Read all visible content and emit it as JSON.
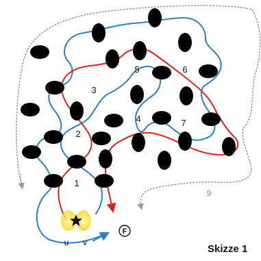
{
  "colors": {
    "blue_path": "#2a7fc6",
    "red_path": "#e02020",
    "dotted_outline": "#9a9a9a",
    "blob": "#000000",
    "glow": "#f4e04a"
  },
  "regions": [
    {
      "id": "1",
      "label": "1"
    },
    {
      "id": "2",
      "label": "2"
    },
    {
      "id": "3",
      "label": "3"
    },
    {
      "id": "4",
      "label": "4"
    },
    {
      "id": "5",
      "label": "5"
    },
    {
      "id": "6",
      "label": "6"
    },
    {
      "id": "7",
      "label": "7"
    }
  ],
  "outline_label": "9",
  "feet": {
    "left": "u",
    "right": "v"
  },
  "end_marker": "F",
  "start_marker_icon": "star-icon",
  "caption": "Skizze 1"
}
